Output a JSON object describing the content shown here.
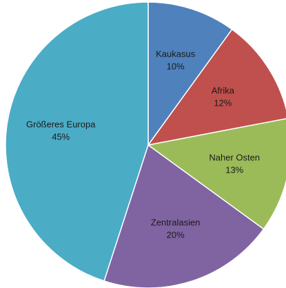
{
  "chart_data": {
    "type": "pie",
    "categories": [
      "Kaukasus",
      "Afrika",
      "Naher Osten",
      "Zentralasien",
      "Größeres Europa"
    ],
    "values": [
      10,
      12,
      13,
      20,
      45
    ],
    "value_labels": [
      "10%",
      "12%",
      "13%",
      "20%",
      "45%"
    ],
    "colors": [
      "#4f81bd",
      "#c0504d",
      "#9bbb59",
      "#8064a2",
      "#4bacc6"
    ]
  }
}
